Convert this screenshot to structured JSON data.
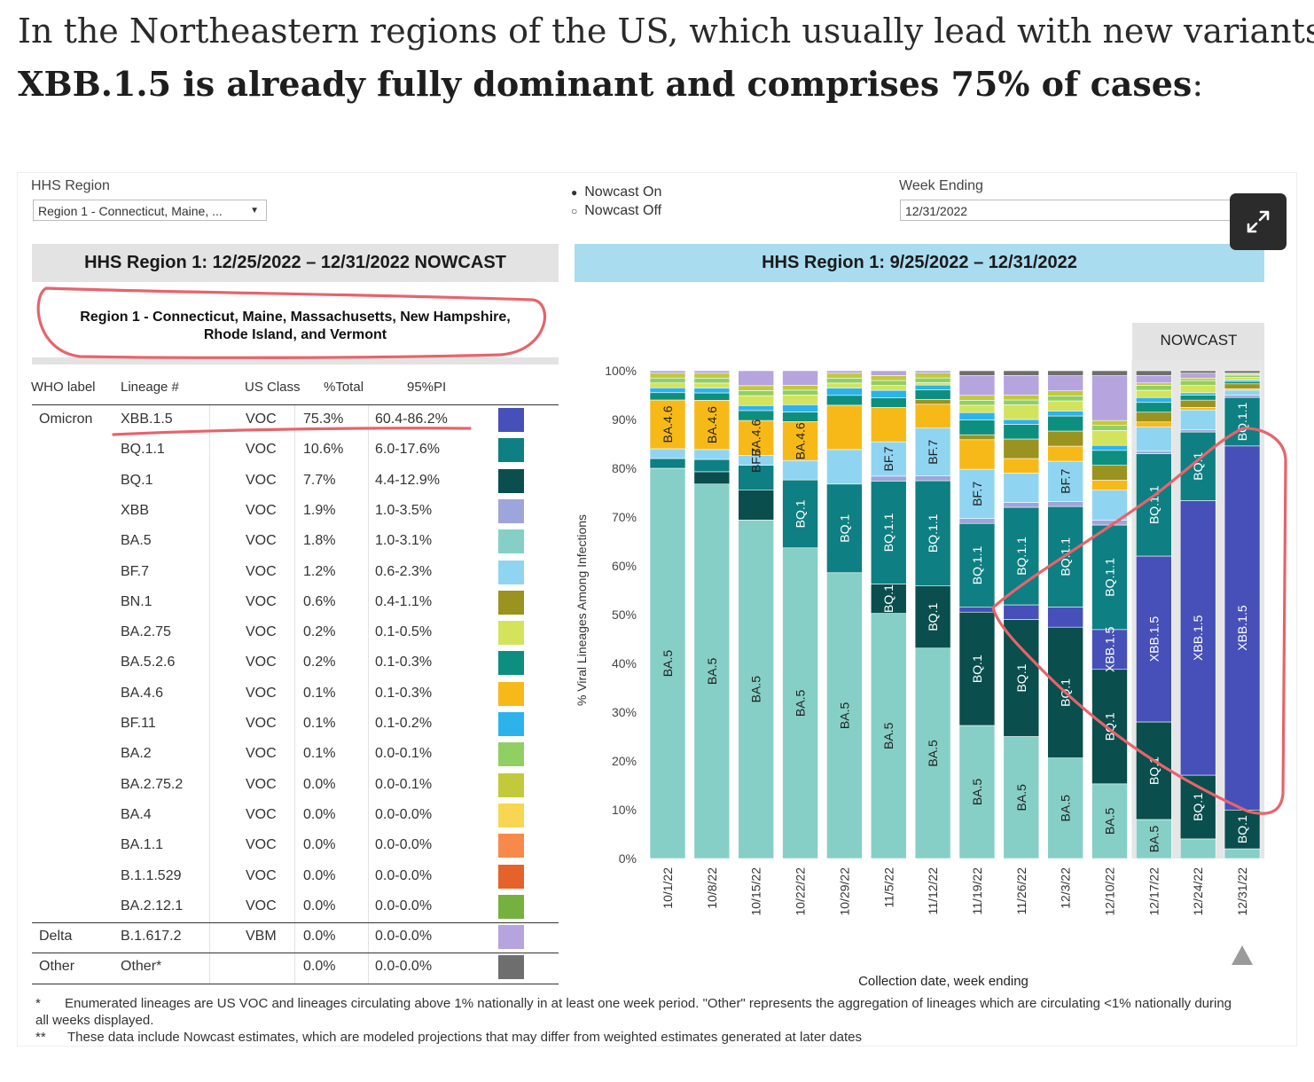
{
  "headline": {
    "line1": "In the Northeastern regions of the US, which usually lead with new variants,",
    "line2_bold": "XBB.1.5 is already fully dominant and comprises 75% of cases",
    "line2_end": ":"
  },
  "controls": {
    "hhs_region_label": "HHS Region",
    "hhs_region_value": "Region 1 - Connecticut, Maine, ...",
    "nowcast_on": "Nowcast On",
    "nowcast_off": "Nowcast Off",
    "week_ending_label": "Week Ending",
    "week_ending_value": "12/31/2022",
    "expand_icon": "expand-arrows-icon",
    "dropdown_icon": "caret-down-icon"
  },
  "left_panel": {
    "header": "HHS Region 1: 12/25/2022 – 12/31/2022 NOWCAST",
    "region_line1": "Region 1 - Connecticut, Maine, Massachusetts, New Hampshire,",
    "region_line2": "Rhode Island, and Vermont",
    "columns": [
      "WHO label",
      "Lineage #",
      "US Class",
      "%Total",
      "95%PI"
    ],
    "rows": [
      {
        "who": "Omicron",
        "lineage": "XBB.1.5",
        "cls": "VOC",
        "total": "75.3%",
        "pi": "60.4-86.2%",
        "color": "#4650b8"
      },
      {
        "who": "",
        "lineage": "BQ.1.1",
        "cls": "VOC",
        "total": "10.6%",
        "pi": "6.0-17.6%",
        "color": "#0e7f82"
      },
      {
        "who": "",
        "lineage": "BQ.1",
        "cls": "VOC",
        "total": "7.7%",
        "pi": "4.4-12.9%",
        "color": "#0a4e4e"
      },
      {
        "who": "",
        "lineage": "XBB",
        "cls": "VOC",
        "total": "1.9%",
        "pi": "1.0-3.5%",
        "color": "#9da5da"
      },
      {
        "who": "",
        "lineage": "BA.5",
        "cls": "VOC",
        "total": "1.8%",
        "pi": "1.0-3.1%",
        "color": "#86cfc6"
      },
      {
        "who": "",
        "lineage": "BF.7",
        "cls": "VOC",
        "total": "1.2%",
        "pi": "0.6-2.3%",
        "color": "#8fd5f1"
      },
      {
        "who": "",
        "lineage": "BN.1",
        "cls": "VOC",
        "total": "0.6%",
        "pi": "0.4-1.1%",
        "color": "#9a931f"
      },
      {
        "who": "",
        "lineage": "BA.2.75",
        "cls": "VOC",
        "total": "0.2%",
        "pi": "0.1-0.5%",
        "color": "#d4e35c"
      },
      {
        "who": "",
        "lineage": "BA.5.2.6",
        "cls": "VOC",
        "total": "0.2%",
        "pi": "0.1-0.3%",
        "color": "#0d8f80"
      },
      {
        "who": "",
        "lineage": "BA.4.6",
        "cls": "VOC",
        "total": "0.1%",
        "pi": "0.1-0.3%",
        "color": "#f7b918"
      },
      {
        "who": "",
        "lineage": "BF.11",
        "cls": "VOC",
        "total": "0.1%",
        "pi": "0.1-0.2%",
        "color": "#2cb3ec"
      },
      {
        "who": "",
        "lineage": "BA.2",
        "cls": "VOC",
        "total": "0.1%",
        "pi": "0.0-0.1%",
        "color": "#90cf62"
      },
      {
        "who": "",
        "lineage": "BA.2.75.2",
        "cls": "VOC",
        "total": "0.0%",
        "pi": "0.0-0.1%",
        "color": "#c2c93a"
      },
      {
        "who": "",
        "lineage": "BA.4",
        "cls": "VOC",
        "total": "0.0%",
        "pi": "0.0-0.0%",
        "color": "#f9d651"
      },
      {
        "who": "",
        "lineage": "BA.1.1",
        "cls": "VOC",
        "total": "0.0%",
        "pi": "0.0-0.0%",
        "color": "#f7894a"
      },
      {
        "who": "",
        "lineage": "B.1.1.529",
        "cls": "VOC",
        "total": "0.0%",
        "pi": "0.0-0.0%",
        "color": "#e5622a"
      },
      {
        "who": "",
        "lineage": "BA.2.12.1",
        "cls": "VOC",
        "total": "0.0%",
        "pi": "0.0-0.0%",
        "color": "#76b140"
      },
      {
        "who": "Delta",
        "lineage": "B.1.617.2",
        "cls": "VBM",
        "total": "0.0%",
        "pi": "0.0-0.0%",
        "color": "#b5a4de"
      },
      {
        "who": "Other",
        "lineage": "Other*",
        "cls": "",
        "total": "0.0%",
        "pi": "0.0-0.0%",
        "color": "#6e6e6e"
      }
    ]
  },
  "right_panel": {
    "header": "HHS Region 1: 9/25/2022 – 12/31/2022",
    "nowcast_label": "NOWCAST",
    "triangle_icon": "triangle-up-icon"
  },
  "chart_data": {
    "type": "bar",
    "stacked": true,
    "xlabel": "Collection date, week ending",
    "ylabel": "% Viral Lineages Among Infections",
    "ylim": [
      0,
      100
    ],
    "yticks": [
      "0%",
      "10%",
      "20%",
      "30%",
      "40%",
      "50%",
      "60%",
      "70%",
      "80%",
      "90%",
      "100%"
    ],
    "categories": [
      "10/1/22",
      "10/8/22",
      "10/15/22",
      "10/22/22",
      "10/29/22",
      "11/5/22",
      "11/12/22",
      "11/19/22",
      "11/26/22",
      "12/3/22",
      "12/10/22",
      "12/17/22",
      "12/24/22",
      "12/31/22"
    ],
    "nowcast_categories": [
      "12/17/22",
      "12/24/22",
      "12/31/22"
    ],
    "series": [
      {
        "name": "BA.5",
        "color": "#86cfc6",
        "values": [
          80,
          76,
          68,
          64,
          58,
          50,
          44,
          27,
          25,
          20,
          15,
          8,
          4,
          2
        ]
      },
      {
        "name": "BQ.1",
        "color": "#0a4e4e",
        "values": [
          0,
          2.5,
          6,
          0,
          0,
          6,
          13,
          23,
          24,
          26,
          23,
          20,
          13,
          8
        ]
      },
      {
        "name": "XBB.1.5",
        "color": "#4650b8",
        "values": [
          0,
          0,
          0,
          0,
          0,
          0,
          0,
          1,
          3,
          4,
          8,
          34,
          56,
          75
        ]
      },
      {
        "name": "BQ.1.1",
        "color": "#0e7f82",
        "values": [
          2,
          2.5,
          5,
          14,
          18,
          21,
          22,
          17,
          20,
          20,
          21,
          21,
          14,
          10
        ]
      },
      {
        "name": "XBB",
        "color": "#9da5da",
        "values": [
          0,
          0,
          0,
          0,
          0,
          1,
          1,
          1,
          1,
          1,
          1,
          0.5,
          0.5,
          0.5
        ]
      },
      {
        "name": "BF.7",
        "color": "#8fd5f1",
        "values": [
          2,
          2,
          2,
          4,
          7,
          7,
          10,
          10,
          6,
          8,
          6,
          5,
          4,
          1
        ]
      },
      {
        "name": "BA.4.6",
        "color": "#f7b918",
        "values": [
          10,
          10,
          7,
          8,
          9,
          7,
          5,
          6,
          3,
          3,
          2,
          1,
          0.5,
          0.3
        ]
      },
      {
        "name": "BN.1",
        "color": "#9a931f",
        "values": [
          0,
          0,
          0,
          0,
          0,
          0,
          1,
          1,
          4,
          3,
          3,
          2,
          1.5,
          1
        ]
      },
      {
        "name": "BA.5.2.6",
        "color": "#0d8f80",
        "values": [
          1.5,
          1.5,
          2,
          2,
          2,
          2,
          2,
          3,
          3,
          3,
          3,
          2,
          1,
          0.5
        ]
      },
      {
        "name": "BF.11",
        "color": "#2cb3ec",
        "values": [
          1,
          1,
          1,
          1.5,
          1.5,
          1.5,
          1,
          1.5,
          1,
          1,
          1,
          1,
          0.5,
          0.3
        ]
      },
      {
        "name": "BA.2.75",
        "color": "#d4e35c",
        "values": [
          1,
          1,
          2,
          2,
          1,
          1,
          0.5,
          1.5,
          3,
          2,
          3,
          1.5,
          1.5,
          0.5
        ]
      },
      {
        "name": "BA.2",
        "color": "#90cf62",
        "values": [
          1,
          1,
          1,
          1,
          1,
          1,
          1,
          1,
          1,
          1,
          1,
          1,
          1,
          0.5
        ]
      },
      {
        "name": "BA.2.75.2",
        "color": "#c2c93a",
        "values": [
          1,
          1,
          1,
          1,
          1,
          1,
          1,
          1,
          1,
          1,
          1,
          0.5,
          0.5,
          0.2
        ]
      },
      {
        "name": "B.1.617.2",
        "color": "#b5a4de",
        "values": [
          0.5,
          0.5,
          3,
          3,
          0.5,
          1,
          0.5,
          4,
          4,
          3,
          9,
          1.5,
          1,
          0.2
        ]
      },
      {
        "name": "Other*",
        "color": "#6e6e6e",
        "values": [
          0,
          0,
          0,
          0,
          0,
          0,
          0,
          1,
          1,
          1,
          1,
          1,
          0.5,
          0.5
        ]
      }
    ],
    "bar_labels": [
      {
        "category": "10/1/22",
        "series": "BA.5",
        "text": "BA.5"
      },
      {
        "category": "10/1/22",
        "series": "BA.4.6",
        "text": "BA.4.6"
      },
      {
        "category": "10/8/22",
        "series": "BA.5",
        "text": "BA.5"
      },
      {
        "category": "10/8/22",
        "series": "BA.4.6",
        "text": "BA.4.6"
      },
      {
        "category": "10/15/22",
        "series": "BA.5",
        "text": "BA.5"
      },
      {
        "category": "10/15/22",
        "series": "BA.4.6",
        "text": "BA.4.6"
      },
      {
        "category": "10/15/22",
        "series": "BF.7",
        "text": "BF.7"
      },
      {
        "category": "10/22/22",
        "series": "BA.5",
        "text": "BA.5"
      },
      {
        "category": "10/22/22",
        "series": "BQ.1.1",
        "text": "BQ.1"
      },
      {
        "category": "10/22/22",
        "series": "BA.4.6",
        "text": "BA.4.6"
      },
      {
        "category": "10/29/22",
        "series": "BA.5",
        "text": "BA.5"
      },
      {
        "category": "10/29/22",
        "series": "BQ.1.1",
        "text": "BQ.1"
      },
      {
        "category": "11/5/22",
        "series": "BA.5",
        "text": "BA.5"
      },
      {
        "category": "11/5/22",
        "series": "BQ.1",
        "text": "BQ.1"
      },
      {
        "category": "11/5/22",
        "series": "BQ.1.1",
        "text": "BQ.1.1"
      },
      {
        "category": "11/5/22",
        "series": "BF.7",
        "text": "BF.7"
      },
      {
        "category": "11/12/22",
        "series": "BA.5",
        "text": "BA.5"
      },
      {
        "category": "11/12/22",
        "series": "BQ.1",
        "text": "BQ.1"
      },
      {
        "category": "11/12/22",
        "series": "BQ.1.1",
        "text": "BQ.1.1"
      },
      {
        "category": "11/12/22",
        "series": "BF.7",
        "text": "BF.7"
      },
      {
        "category": "11/19/22",
        "series": "BA.5",
        "text": "BA.5"
      },
      {
        "category": "11/19/22",
        "series": "BQ.1",
        "text": "BQ.1"
      },
      {
        "category": "11/19/22",
        "series": "BQ.1.1",
        "text": "BQ.1.1"
      },
      {
        "category": "11/19/22",
        "series": "BF.7",
        "text": "BF.7"
      },
      {
        "category": "11/26/22",
        "series": "BA.5",
        "text": "BA.5"
      },
      {
        "category": "11/26/22",
        "series": "BQ.1",
        "text": "BQ.1"
      },
      {
        "category": "11/26/22",
        "series": "BQ.1.1",
        "text": "BQ.1.1"
      },
      {
        "category": "12/3/22",
        "series": "BA.5",
        "text": "BA.5"
      },
      {
        "category": "12/3/22",
        "series": "BQ.1",
        "text": "BQ.1"
      },
      {
        "category": "12/3/22",
        "series": "BQ.1.1",
        "text": "BQ.1.1"
      },
      {
        "category": "12/3/22",
        "series": "BF.7",
        "text": "BF.7"
      },
      {
        "category": "12/10/22",
        "series": "BA.5",
        "text": "BA.5"
      },
      {
        "category": "12/10/22",
        "series": "BQ.1",
        "text": "BQ.1"
      },
      {
        "category": "12/10/22",
        "series": "XBB.1.5",
        "text": "XBB.1.5"
      },
      {
        "category": "12/10/22",
        "series": "BQ.1.1",
        "text": "BQ.1.1"
      },
      {
        "category": "12/17/22",
        "series": "BA.5",
        "text": "BA.5"
      },
      {
        "category": "12/17/22",
        "series": "BQ.1",
        "text": "BQ.1"
      },
      {
        "category": "12/17/22",
        "series": "XBB.1.5",
        "text": "XBB.1.5"
      },
      {
        "category": "12/17/22",
        "series": "BQ.1.1",
        "text": "BQ.1.1"
      },
      {
        "category": "12/24/22",
        "series": "BQ.1",
        "text": "BQ.1"
      },
      {
        "category": "12/24/22",
        "series": "XBB.1.5",
        "text": "XBB.1.5"
      },
      {
        "category": "12/24/22",
        "series": "BQ.1.1",
        "text": "BQ.1"
      },
      {
        "category": "12/31/22",
        "series": "BQ.1",
        "text": "BQ.1"
      },
      {
        "category": "12/31/22",
        "series": "XBB.1.5",
        "text": "XBB.1.5"
      },
      {
        "category": "12/31/22",
        "series": "BQ.1.1",
        "text": "BQ.1.1"
      }
    ]
  },
  "footnotes": {
    "star1": "*",
    "note1": "Enumerated lineages are US VOC and lineages circulating above 1% nationally in at least one week period. \"Other\" represents the aggregation of lineages which are circulating <1% nationally during all weeks displayed.",
    "star2": "**",
    "note2": "These data include Nowcast estimates, which are modeled projections that may differ from weighted estimates generated at later dates"
  }
}
